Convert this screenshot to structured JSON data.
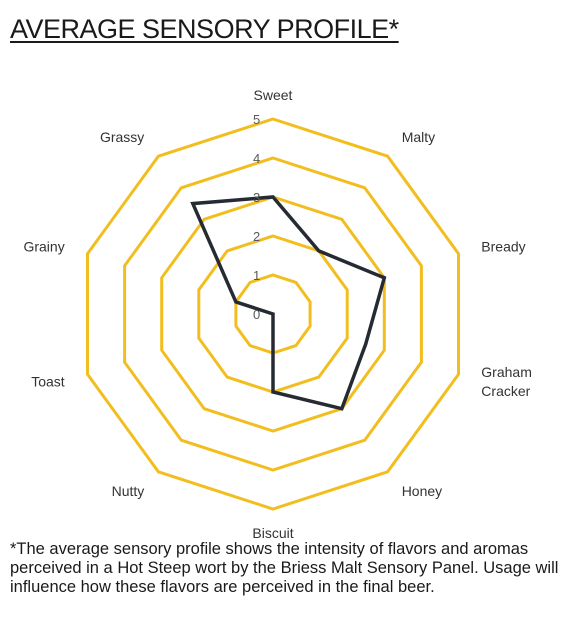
{
  "title": "AVERAGE SENSORY PROFILE*",
  "footnote": "*The average sensory profile shows the intensity of flavors and aromas perceived in a Hot Steep wort by the Briess Malt Sensory Panel. Usage will influence how these flavors are perceived in the final beer.",
  "colors": {
    "grid": "#F2BE1F",
    "series": "#262B33",
    "text": "#333333"
  },
  "chart_data": {
    "type": "radar",
    "categories": [
      "Sweet",
      "Malty",
      "Bready",
      "Graham Cracker",
      "Honey",
      "Biscuit",
      "Nutty",
      "Toast",
      "Grainy",
      "Grassy"
    ],
    "category_lines": [
      [
        "Sweet"
      ],
      [
        "Malty"
      ],
      [
        "Bready"
      ],
      [
        "Graham",
        "Cracker"
      ],
      [
        "Honey"
      ],
      [
        "Biscuit"
      ],
      [
        "Nutty"
      ],
      [
        "Toast"
      ],
      [
        "Grainy"
      ],
      [
        "Grassy"
      ]
    ],
    "rlim": [
      0,
      5
    ],
    "ticks": [
      "0",
      "1",
      "2",
      "3",
      "4",
      "5"
    ],
    "series": [
      {
        "values": [
          3,
          2,
          3,
          2.5,
          3,
          2,
          0,
          0,
          1,
          3.5
        ]
      }
    ]
  }
}
